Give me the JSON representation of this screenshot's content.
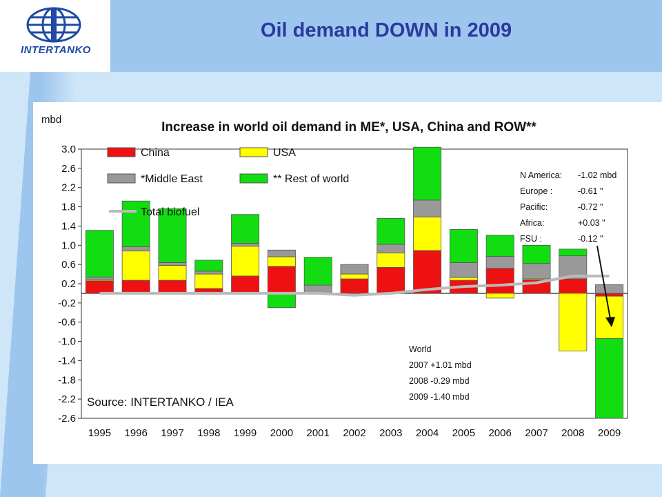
{
  "header": {
    "title": "Oil demand DOWN in 2009",
    "logo_text": "INTERTANKO"
  },
  "chart_data": {
    "type": "bar",
    "stacked": true,
    "title": "Increase in world oil demand in ME*, USA, China and ROW**",
    "ylabel": "mbd",
    "xlabel": "",
    "ylim": [
      -2.6,
      3.0
    ],
    "yticks": [
      "3.0",
      "2.6",
      "2.2",
      "1.8",
      "1.4",
      "1.0",
      "0.6",
      "0.2",
      "-0.2",
      "-0.6",
      "-1.0",
      "-1.4",
      "-1.8",
      "-2.2",
      "-2.6"
    ],
    "categories": [
      "1995",
      "1996",
      "1997",
      "1998",
      "1999",
      "2000",
      "2001",
      "2002",
      "2003",
      "2004",
      "2005",
      "2006",
      "2007",
      "2008",
      "2009"
    ],
    "series": [
      {
        "name": "China",
        "color": "#ee1111",
        "values": [
          0.26,
          0.27,
          0.27,
          0.1,
          0.36,
          0.56,
          0.0,
          0.3,
          0.54,
          0.89,
          0.27,
          0.52,
          0.28,
          0.3,
          -0.06
        ]
      },
      {
        "name": "USA",
        "color": "#ffff00",
        "values": [
          0.02,
          0.61,
          0.31,
          0.3,
          0.62,
          0.2,
          0.0,
          0.1,
          0.3,
          0.7,
          0.06,
          -0.1,
          0.02,
          -1.2,
          -0.88
        ]
      },
      {
        "name": "*Middle East",
        "color": "#999999",
        "values": [
          0.06,
          0.09,
          0.06,
          0.06,
          0.06,
          0.14,
          0.17,
          0.2,
          0.18,
          0.35,
          0.31,
          0.25,
          0.32,
          0.48,
          0.18
        ]
      },
      {
        "name": "** Rest of world",
        "color": "#11dd11",
        "values": [
          0.97,
          0.95,
          1.12,
          0.23,
          0.6,
          -0.3,
          0.58,
          0.0,
          0.54,
          1.1,
          0.69,
          0.44,
          0.38,
          0.14,
          -1.66
        ]
      }
    ],
    "total_biofuel": {
      "name": "Total biofuel",
      "color": "#bbbbbb",
      "values": [
        0.0,
        0.0,
        0.0,
        0.0,
        0.0,
        0.0,
        0.0,
        -0.04,
        0.0,
        0.08,
        0.14,
        0.17,
        0.22,
        0.36,
        0.36
      ]
    },
    "regional_notes": [
      {
        "label": "N America:",
        "value": "-1.02 mbd"
      },
      {
        "label": "Europe :",
        "value": "-0.61 \""
      },
      {
        "label": "Pacific:",
        "value": "-0.72 \""
      },
      {
        "label": "Africa:",
        "value": "+0.03 \""
      },
      {
        "label": "FSU   :",
        "value": "-0.12 \""
      }
    ],
    "world_notes": [
      "World",
      "2007 +1.01 mbd",
      "2008 -0.29 mbd",
      "2009 -1.40 mbd"
    ],
    "source": "Source: INTERTANKO / IEA",
    "legend_placement": "top-left",
    "grid": false
  }
}
